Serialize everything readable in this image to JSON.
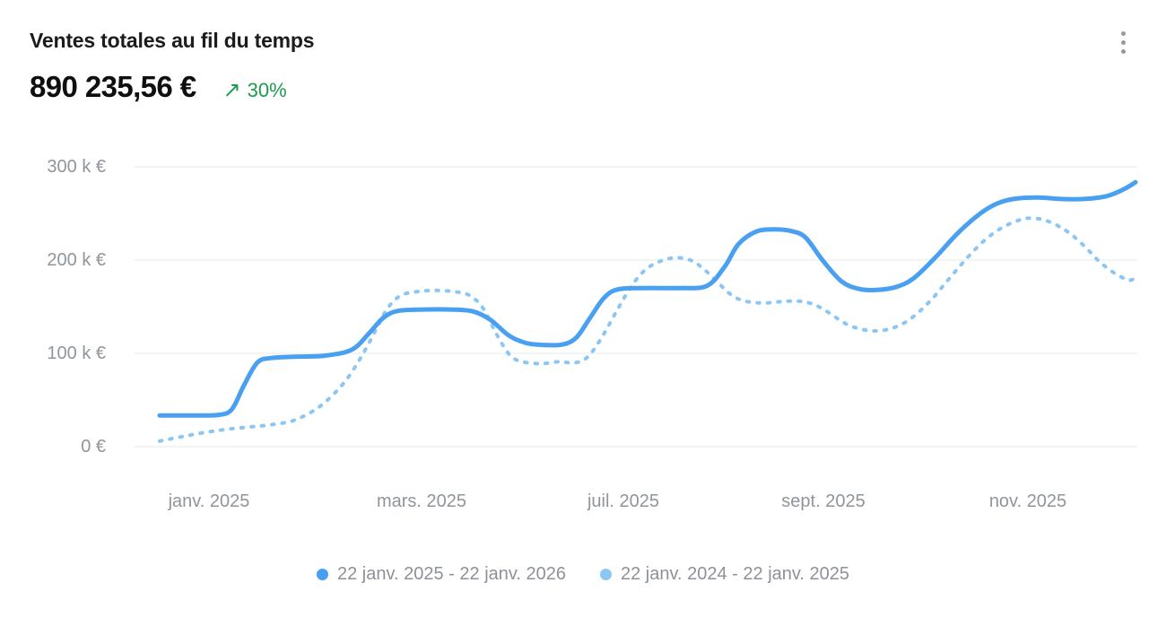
{
  "header": {
    "title": "Ventes totales au fil du temps",
    "value": "890 235,56 €",
    "trend": {
      "arrow": "↗",
      "label": "30%",
      "color": "#1b9c4e"
    },
    "menu_icon": "kebab-menu"
  },
  "chart_data": {
    "type": "line",
    "title": "Ventes totales au fil du temps",
    "total_value_label": "890 235,56 €",
    "trend_pct": "30%",
    "grid": true,
    "legend_position": "bottom",
    "y_axis": {
      "min": 0,
      "max": 300000,
      "unit": "EUR",
      "ticks_bottom_to_top": [
        "0 €",
        "100 k €",
        "200 k €",
        "300 k €"
      ],
      "tick_values": [
        0,
        100000,
        200000,
        300000
      ]
    },
    "x_axis": {
      "ticks": [
        "janv. 2025",
        "mars. 2025",
        "juil. 2025",
        "sept. 2025",
        "nov. 2025"
      ],
      "range_start": "22 janv. 2025",
      "range_end": "22 janv. 2026"
    },
    "series": [
      {
        "name": "22 janv. 2025 - 22 janv. 2026",
        "style": "solid",
        "color": "#4aa0f0",
        "points": [
          [
            0.0,
            33500
          ],
          [
            0.031,
            33500
          ],
          [
            0.06,
            34000
          ],
          [
            0.074,
            40000
          ],
          [
            0.086,
            65000
          ],
          [
            0.1,
            90000
          ],
          [
            0.114,
            95000
          ],
          [
            0.14,
            96500
          ],
          [
            0.169,
            97500
          ],
          [
            0.197,
            104000
          ],
          [
            0.215,
            122000
          ],
          [
            0.229,
            138000
          ],
          [
            0.244,
            145500
          ],
          [
            0.27,
            147000
          ],
          [
            0.298,
            147000
          ],
          [
            0.321,
            145000
          ],
          [
            0.339,
            136000
          ],
          [
            0.358,
            119000
          ],
          [
            0.376,
            111000
          ],
          [
            0.394,
            109000
          ],
          [
            0.413,
            109500
          ],
          [
            0.427,
            117000
          ],
          [
            0.441,
            138000
          ],
          [
            0.455,
            159000
          ],
          [
            0.469,
            168500
          ],
          [
            0.496,
            170000
          ],
          [
            0.533,
            170000
          ],
          [
            0.561,
            172500
          ],
          [
            0.579,
            193000
          ],
          [
            0.593,
            217000
          ],
          [
            0.611,
            230500
          ],
          [
            0.63,
            233000
          ],
          [
            0.648,
            231000
          ],
          [
            0.662,
            224000
          ],
          [
            0.68,
            199000
          ],
          [
            0.699,
            177000
          ],
          [
            0.717,
            169000
          ],
          [
            0.735,
            168000
          ],
          [
            0.754,
            171000
          ],
          [
            0.772,
            180000
          ],
          [
            0.795,
            203000
          ],
          [
            0.818,
            229000
          ],
          [
            0.841,
            250000
          ],
          [
            0.859,
            261000
          ],
          [
            0.878,
            266000
          ],
          [
            0.901,
            267000
          ],
          [
            0.924,
            265500
          ],
          [
            0.947,
            265500
          ],
          [
            0.97,
            268500
          ],
          [
            0.988,
            276000
          ],
          [
            1.0,
            283500
          ]
        ]
      },
      {
        "name": "22 janv. 2024 - 22 janv. 2025",
        "style": "dashed",
        "color": "#8cc6f5",
        "points": [
          [
            0.0,
            6000
          ],
          [
            0.022,
            10500
          ],
          [
            0.045,
            15000
          ],
          [
            0.068,
            18500
          ],
          [
            0.091,
            21000
          ],
          [
            0.114,
            23500
          ],
          [
            0.137,
            28000
          ],
          [
            0.16,
            40000
          ],
          [
            0.178,
            56000
          ],
          [
            0.193,
            74000
          ],
          [
            0.207,
            97000
          ],
          [
            0.221,
            124000
          ],
          [
            0.234,
            149000
          ],
          [
            0.248,
            162500
          ],
          [
            0.267,
            166500
          ],
          [
            0.285,
            167500
          ],
          [
            0.303,
            166000
          ],
          [
            0.317,
            162500
          ],
          [
            0.331,
            149000
          ],
          [
            0.345,
            121000
          ],
          [
            0.359,
            98000
          ],
          [
            0.372,
            91000
          ],
          [
            0.391,
            89000
          ],
          [
            0.409,
            91000
          ],
          [
            0.426,
            90000
          ],
          [
            0.439,
            96500
          ],
          [
            0.453,
            117000
          ],
          [
            0.467,
            143000
          ],
          [
            0.481,
            168000
          ],
          [
            0.494,
            186000
          ],
          [
            0.508,
            196500
          ],
          [
            0.527,
            202500
          ],
          [
            0.545,
            199500
          ],
          [
            0.559,
            189000
          ],
          [
            0.573,
            175000
          ],
          [
            0.586,
            162500
          ],
          [
            0.6,
            156000
          ],
          [
            0.619,
            154000
          ],
          [
            0.637,
            155500
          ],
          [
            0.655,
            156000
          ],
          [
            0.669,
            153000
          ],
          [
            0.683,
            145500
          ],
          [
            0.701,
            133000
          ],
          [
            0.715,
            127000
          ],
          [
            0.733,
            124000
          ],
          [
            0.752,
            127500
          ],
          [
            0.77,
            137500
          ],
          [
            0.789,
            155500
          ],
          [
            0.807,
            177500
          ],
          [
            0.825,
            199500
          ],
          [
            0.844,
            220000
          ],
          [
            0.862,
            234000
          ],
          [
            0.881,
            243000
          ],
          [
            0.894,
            245000
          ],
          [
            0.908,
            242500
          ],
          [
            0.922,
            236000
          ],
          [
            0.936,
            226000
          ],
          [
            0.95,
            212500
          ],
          [
            0.963,
            198500
          ],
          [
            0.977,
            187000
          ],
          [
            0.989,
            180000
          ],
          [
            0.995,
            178500
          ],
          [
            1.0,
            181500
          ]
        ]
      }
    ],
    "colors": {
      "gridline": "#e7e8e9",
      "axis_text": "#8f959b",
      "legend_text": "#8d9298"
    }
  },
  "legend": {
    "items": [
      {
        "label": "22 janv. 2025 - 22 janv. 2026",
        "dot_color": "#4aa0f0"
      },
      {
        "label": "22 janv. 2024 - 22 janv. 2025",
        "dot_color": "#8cc6f5"
      }
    ]
  }
}
